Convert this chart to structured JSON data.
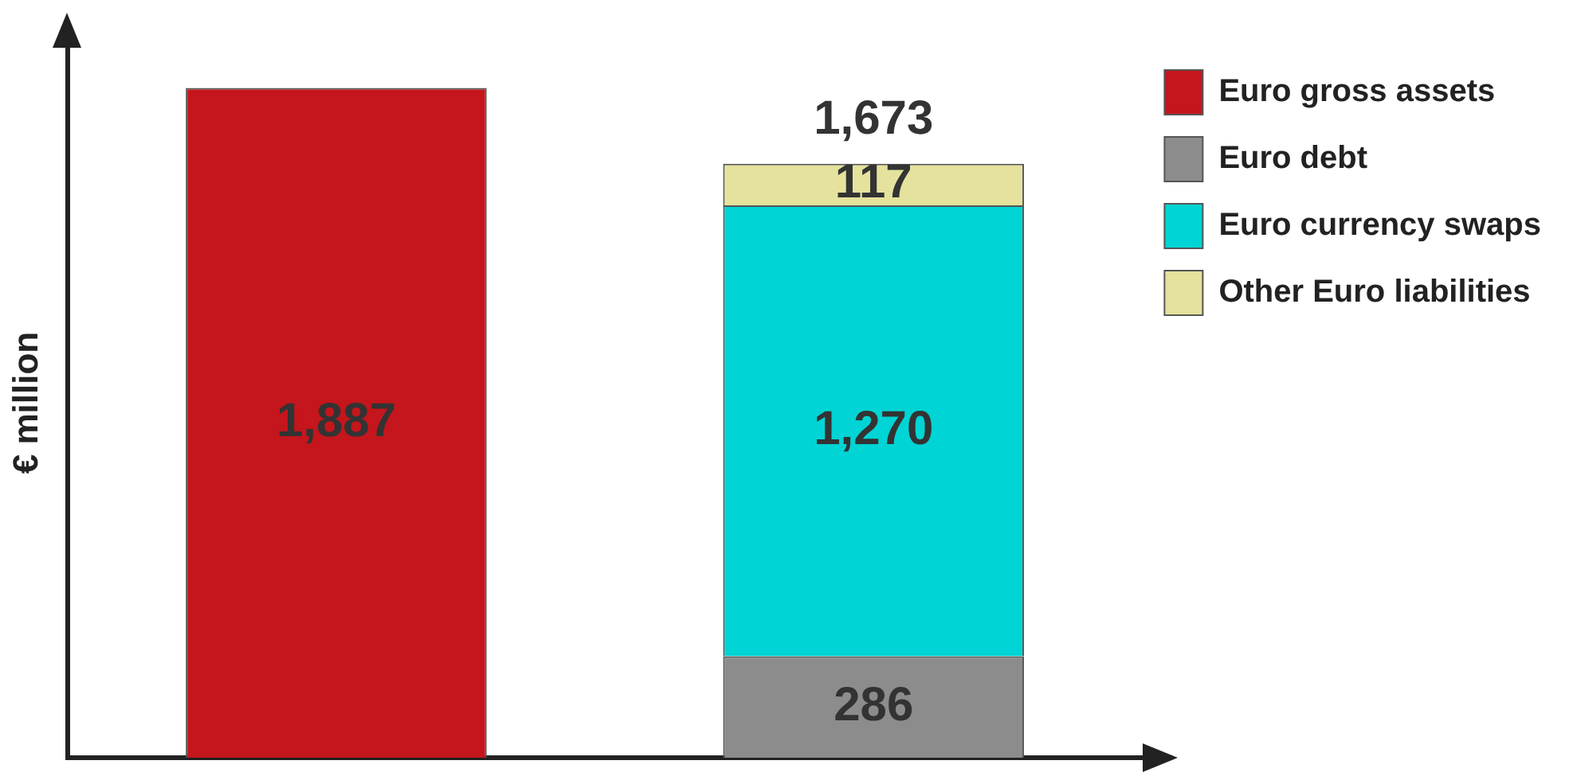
{
  "chart_data": {
    "type": "bar",
    "stacked": true,
    "ylabel": "€ million",
    "categories": [
      null,
      null
    ],
    "tick_labels": false,
    "grid": false,
    "legend": "right",
    "series": [
      {
        "name": "Euro gross assets",
        "color": "#c4161c",
        "values": [
          1887,
          null
        ],
        "value_labels": [
          "1,887",
          null
        ]
      },
      {
        "name": "Euro debt",
        "color": "#8c8c8c",
        "values": [
          null,
          286
        ],
        "value_labels": [
          null,
          "286"
        ]
      },
      {
        "name": "Euro currency swaps",
        "color": "#00d4d4",
        "values": [
          null,
          1270
        ],
        "value_labels": [
          null,
          "1,270"
        ]
      },
      {
        "name": "Other Euro liabilities",
        "color": "#e4e29c",
        "values": [
          null,
          117
        ],
        "value_labels": [
          null,
          "117"
        ]
      }
    ],
    "totals": [
      null,
      "1,673"
    ]
  }
}
